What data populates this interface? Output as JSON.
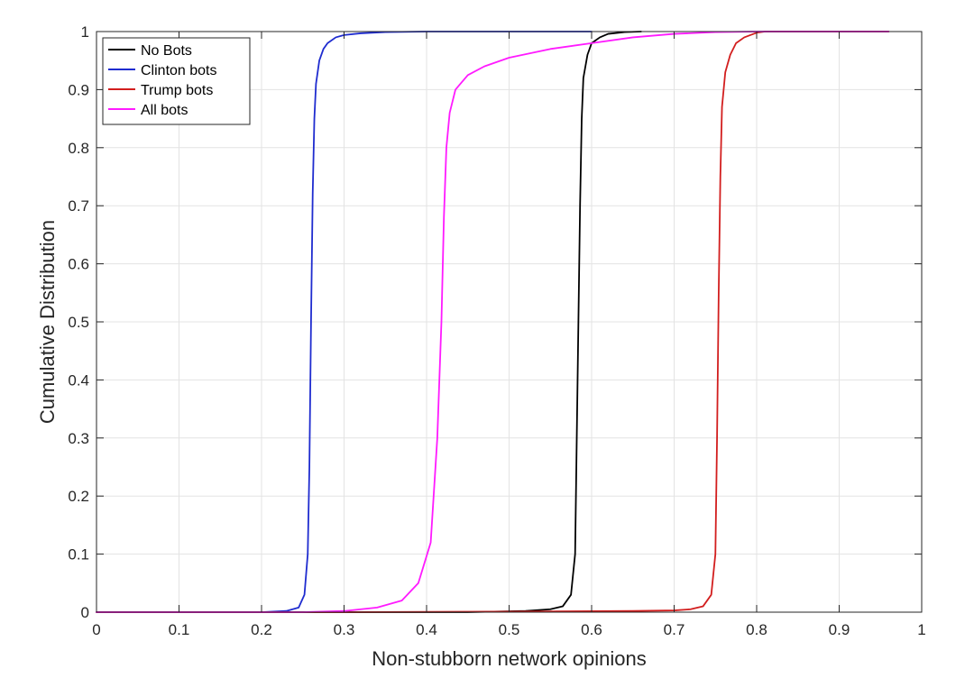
{
  "chart_data": {
    "type": "line",
    "xlabel": "Non-stubborn network opinions",
    "ylabel": "Cumulative Distribution",
    "xlim": [
      0,
      1
    ],
    "ylim": [
      0,
      1
    ],
    "xticks": [
      "0",
      "0.1",
      "0.2",
      "0.3",
      "0.4",
      "0.5",
      "0.6",
      "0.7",
      "0.8",
      "0.9",
      "1"
    ],
    "yticks": [
      "0",
      "0.1",
      "0.2",
      "0.3",
      "0.4",
      "0.5",
      "0.6",
      "0.7",
      "0.8",
      "0.9",
      "1"
    ],
    "grid": true,
    "legend_position": "top-left",
    "series": [
      {
        "name": "No Bots",
        "color": "#000000",
        "x": [
          0,
          0.45,
          0.52,
          0.55,
          0.565,
          0.575,
          0.58,
          0.582,
          0.584,
          0.586,
          0.588,
          0.59,
          0.595,
          0.6,
          0.61,
          0.62,
          0.64,
          0.66
        ],
        "y": [
          0,
          0,
          0.002,
          0.005,
          0.01,
          0.03,
          0.1,
          0.3,
          0.5,
          0.7,
          0.85,
          0.92,
          0.96,
          0.98,
          0.99,
          0.996,
          0.999,
          1
        ]
      },
      {
        "name": "Clinton bots",
        "color": "#1f2ccf",
        "x": [
          0,
          0.2,
          0.23,
          0.245,
          0.252,
          0.256,
          0.258,
          0.26,
          0.262,
          0.264,
          0.266,
          0.27,
          0.275,
          0.28,
          0.29,
          0.3,
          0.32,
          0.35,
          0.4,
          0.6
        ],
        "y": [
          0,
          0,
          0.002,
          0.008,
          0.03,
          0.1,
          0.25,
          0.5,
          0.72,
          0.85,
          0.91,
          0.95,
          0.97,
          0.98,
          0.99,
          0.994,
          0.997,
          0.999,
          1,
          1
        ]
      },
      {
        "name": "Trump bots",
        "color": "#d21e1e",
        "x": [
          0,
          0.3,
          0.5,
          0.65,
          0.7,
          0.72,
          0.735,
          0.745,
          0.75,
          0.752,
          0.754,
          0.756,
          0.758,
          0.762,
          0.768,
          0.775,
          0.785,
          0.8,
          0.81,
          0.96
        ],
        "y": [
          0,
          0,
          0.001,
          0.002,
          0.003,
          0.005,
          0.01,
          0.03,
          0.1,
          0.3,
          0.55,
          0.75,
          0.87,
          0.93,
          0.96,
          0.98,
          0.99,
          0.998,
          1,
          1
        ]
      },
      {
        "name": "All bots",
        "color": "#ff1aff",
        "x": [
          0,
          0.25,
          0.3,
          0.34,
          0.37,
          0.39,
          0.405,
          0.413,
          0.418,
          0.421,
          0.424,
          0.428,
          0.435,
          0.45,
          0.47,
          0.5,
          0.55,
          0.6,
          0.65,
          0.7,
          0.75,
          0.8,
          0.96
        ],
        "y": [
          0,
          0,
          0.002,
          0.008,
          0.02,
          0.05,
          0.12,
          0.3,
          0.5,
          0.68,
          0.8,
          0.86,
          0.9,
          0.925,
          0.94,
          0.955,
          0.97,
          0.98,
          0.99,
          0.996,
          0.999,
          1,
          1
        ]
      }
    ]
  }
}
